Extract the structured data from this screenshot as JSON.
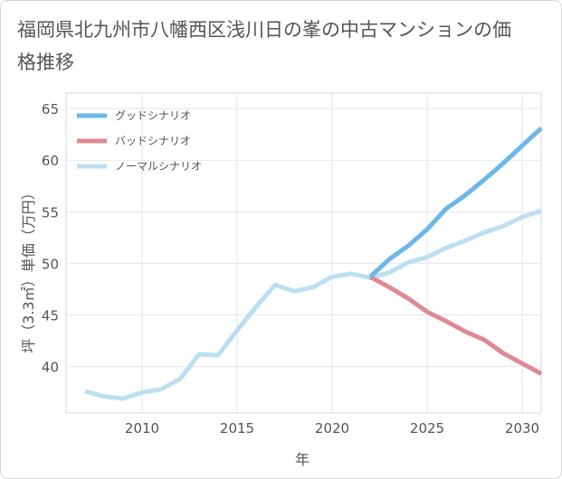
{
  "title": "福岡県北九州市八幡西区浅川日の峯の中古マンションの価格推移",
  "chart_data": {
    "type": "line",
    "title": "福岡県北九州市八幡西区浅川日の峯の中古マンションの価格推移",
    "xlabel": "年",
    "ylabel": "坪（3.3㎡）単価（万円）",
    "xlim": [
      2006,
      2031
    ],
    "ylim": [
      35.5,
      66.5
    ],
    "x_ticks": [
      2010,
      2015,
      2020,
      2025,
      2030
    ],
    "y_ticks": [
      40,
      45,
      50,
      55,
      60,
      65
    ],
    "grid": true,
    "legend_position": "top-left",
    "series": [
      {
        "name": "グッドシナリオ",
        "color": "#6cb7e8",
        "x": [
          2022,
          2023,
          2024,
          2025,
          2026,
          2027,
          2028,
          2029,
          2030,
          2031
        ],
        "y": [
          48.7,
          50.4,
          51.7,
          53.3,
          55.3,
          56.6,
          58.1,
          59.7,
          61.4,
          63.1
        ]
      },
      {
        "name": "バッドシナリオ",
        "color": "#de8a92",
        "x": [
          2022,
          2023,
          2024,
          2025,
          2026,
          2027,
          2028,
          2029,
          2030,
          2031
        ],
        "y": [
          48.7,
          47.7,
          46.6,
          45.3,
          44.4,
          43.4,
          42.6,
          41.3,
          40.3,
          39.3
        ]
      },
      {
        "name": "ノーマルシナリオ",
        "color": "#bcdff0",
        "x": [
          2007,
          2008,
          2009,
          2010,
          2011,
          2012,
          2013,
          2014,
          2015,
          2016,
          2017,
          2018,
          2019,
          2020,
          2021,
          2022,
          2023,
          2024,
          2025,
          2026,
          2027,
          2028,
          2029,
          2030,
          2031
        ],
        "y": [
          37.6,
          37.1,
          36.9,
          37.5,
          37.8,
          38.8,
          41.2,
          41.1,
          43.5,
          45.8,
          47.9,
          47.3,
          47.7,
          48.7,
          49.0,
          48.6,
          49.1,
          50.1,
          50.6,
          51.5,
          52.2,
          53.0,
          53.6,
          54.5,
          55.1
        ]
      }
    ]
  }
}
